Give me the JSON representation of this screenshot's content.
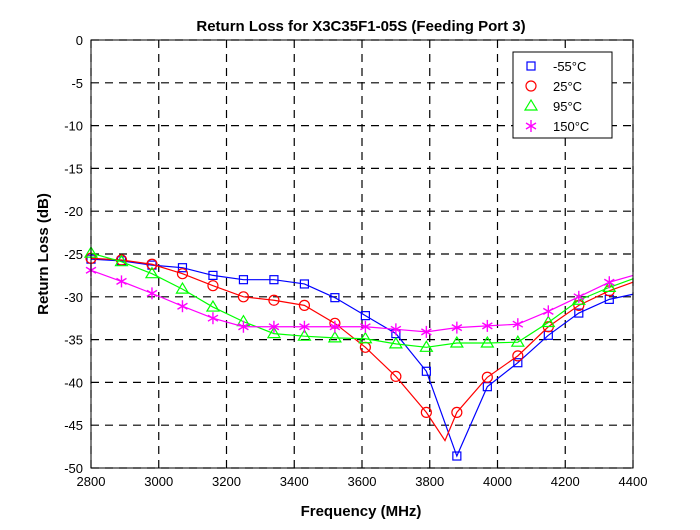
{
  "chart_data": {
    "type": "line",
    "title": "Return Loss for X3C35F1-05S (Feeding Port 3)",
    "xlabel": "Frequency (MHz)",
    "ylabel": "Return Loss (dB)",
    "xlim": [
      2800,
      4400
    ],
    "ylim": [
      -50,
      0
    ],
    "xticks": [
      2800,
      3000,
      3200,
      3400,
      3600,
      3800,
      4000,
      4200,
      4400
    ],
    "yticks": [
      0,
      -5,
      -10,
      -15,
      -20,
      -25,
      -30,
      -35,
      -40,
      -45,
      -50
    ],
    "grid": true,
    "legend_position": "top-right",
    "x": [
      2800,
      2890,
      2980,
      3070,
      3160,
      3250,
      3340,
      3430,
      3520,
      3610,
      3700,
      3790,
      3880,
      3970,
      4060,
      4150,
      4240,
      4330
    ],
    "series": [
      {
        "name": "-55°C",
        "color": "#0000ff",
        "marker": "square",
        "y": [
          -25.6,
          -25.8,
          -26.3,
          -26.6,
          -27.5,
          -28.0,
          -28.0,
          -28.5,
          -30.1,
          -32.2,
          -34.3,
          -38.7,
          -48.6,
          -40.5,
          -37.7,
          -34.5,
          -31.9,
          -30.3
        ],
        "end": -29.7
      },
      {
        "name": "25°C",
        "color": "#ff0000",
        "marker": "circle",
        "y": [
          -25.5,
          -25.7,
          -26.2,
          -27.3,
          -28.7,
          -30.0,
          -30.4,
          -31.0,
          -33.1,
          -35.9,
          -39.3,
          -43.5,
          -43.5,
          -39.4,
          -36.9,
          -33.5,
          -31.0,
          -29.3
        ],
        "end": -28.3,
        "line_min": [
          3845,
          -46.8
        ]
      },
      {
        "name": "95°C",
        "color": "#00ff00",
        "marker": "triangle",
        "y": [
          -24.9,
          -25.9,
          -27.3,
          -29.1,
          -31.2,
          -32.9,
          -34.3,
          -34.6,
          -34.8,
          -34.9,
          -35.5,
          -35.9,
          -35.4,
          -35.4,
          -35.3,
          -33.0,
          -30.4,
          -28.9
        ],
        "end": -27.9
      },
      {
        "name": "150°C",
        "color": "#ff00ff",
        "marker": "asterisk",
        "y": [
          -26.9,
          -28.2,
          -29.6,
          -31.1,
          -32.5,
          -33.5,
          -33.5,
          -33.5,
          -33.5,
          -33.5,
          -33.8,
          -34.1,
          -33.6,
          -33.4,
          -33.2,
          -31.7,
          -30.0,
          -28.3
        ],
        "end": -27.5
      }
    ]
  }
}
